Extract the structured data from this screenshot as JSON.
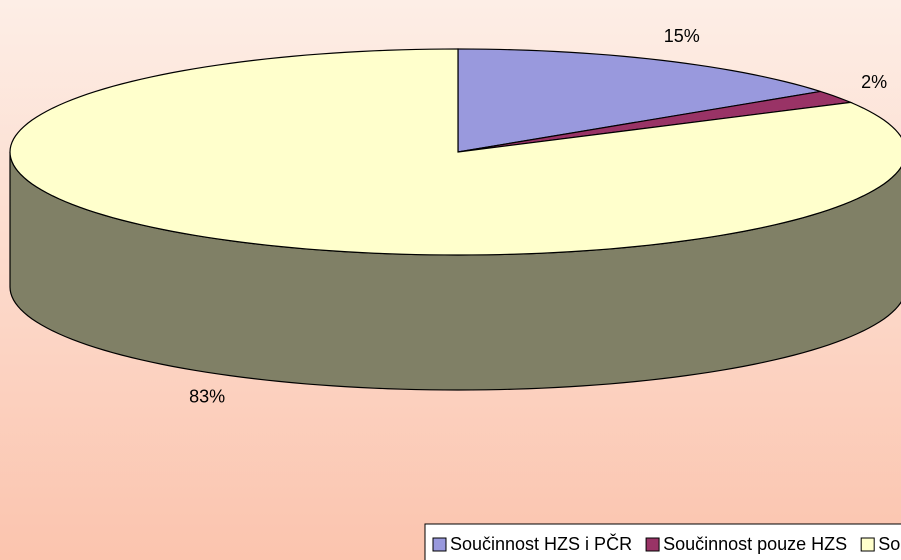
{
  "chart_data": {
    "type": "pie",
    "categories": [
      "Součinnost HZS i PČR",
      "Součinnost pouze HZS",
      "Součinnost pouze PČR"
    ],
    "values": [
      15,
      2,
      83
    ],
    "value_labels": [
      "15%",
      "2%",
      "83%"
    ],
    "colors": [
      "#9999dd",
      "#993366",
      "#ffffcc"
    ],
    "legend": "bottom"
  }
}
